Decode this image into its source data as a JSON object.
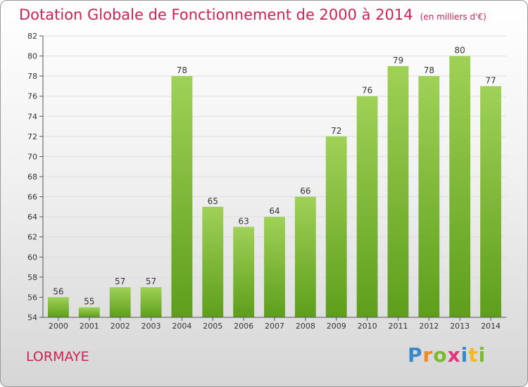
{
  "chart_data": {
    "type": "bar",
    "title": "Dotation Globale de Fonctionnement de 2000 à 2014",
    "subtitle": "(en milliers d'€)",
    "categories": [
      "2000",
      "2001",
      "2002",
      "2003",
      "2004",
      "2005",
      "2006",
      "2007",
      "2008",
      "2009",
      "2010",
      "2011",
      "2012",
      "2013",
      "2014"
    ],
    "values": [
      56,
      55,
      57,
      57,
      78,
      65,
      63,
      64,
      66,
      72,
      76,
      79,
      78,
      80,
      77
    ],
    "ylim": [
      54,
      82
    ],
    "yticks": [
      54,
      56,
      58,
      60,
      62,
      64,
      66,
      68,
      70,
      72,
      74,
      76,
      78,
      80,
      82
    ],
    "grid": true,
    "bar_color": "#7dbb33",
    "legend": "none"
  },
  "commune": "LORMAYE",
  "brand": {
    "letters": [
      "P",
      "r",
      "o",
      "x",
      "i",
      "t",
      "i"
    ],
    "colors": [
      "#3a88c8",
      "#f08a24",
      "#7cb92e",
      "#e2367a",
      "#3a88c8",
      "#f3b922",
      "#7cb92e"
    ]
  },
  "colors": {
    "title": "#cc2255",
    "axis": "#555555",
    "grid": "#dddddd"
  }
}
